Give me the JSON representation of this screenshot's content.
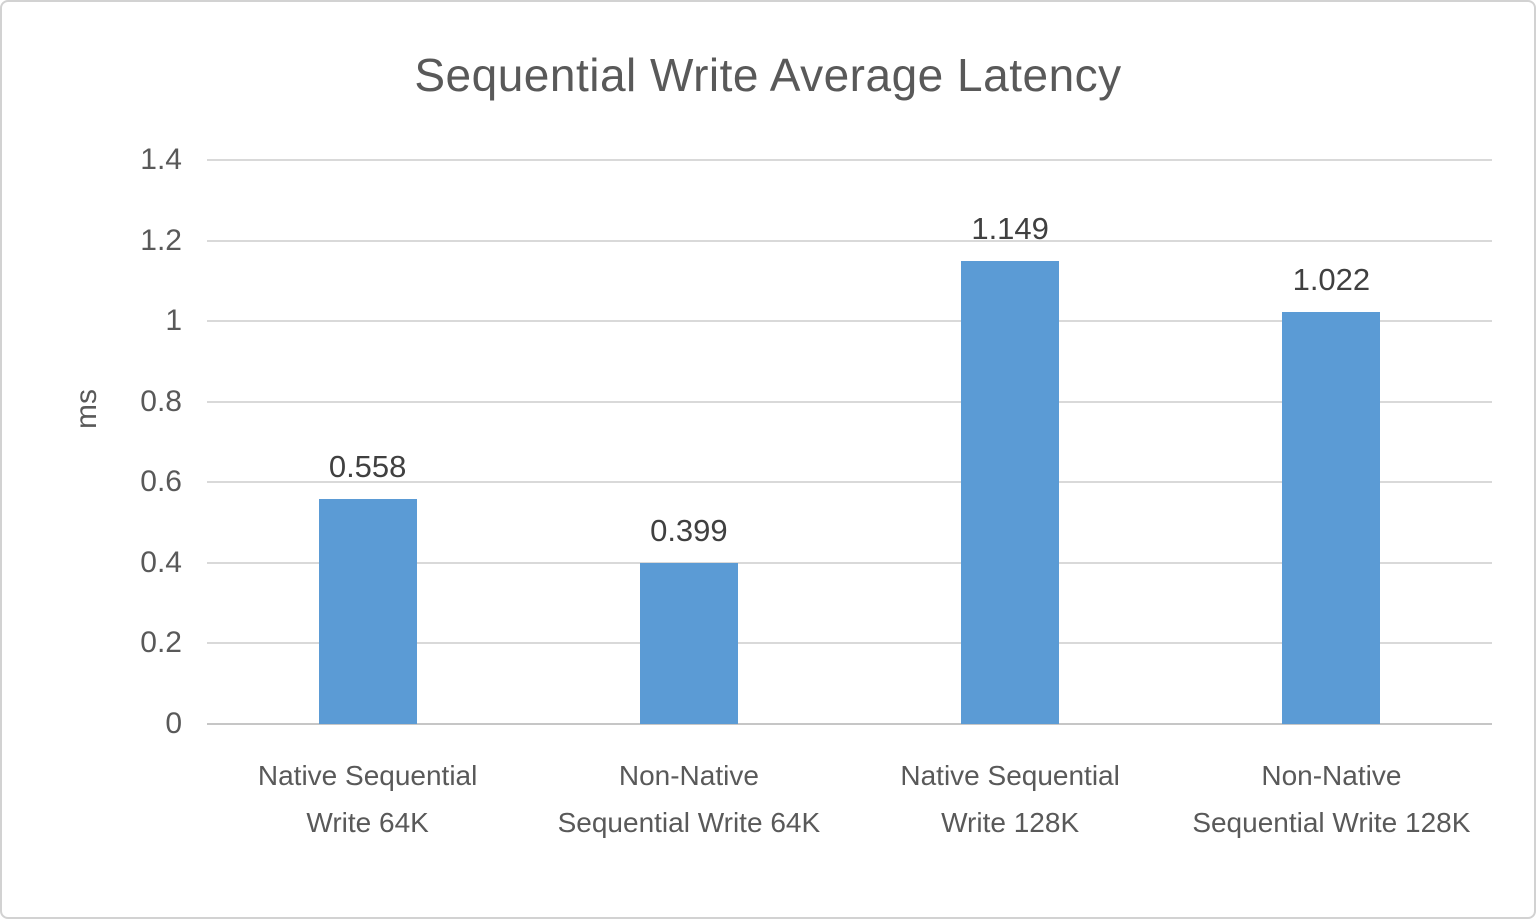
{
  "chart": {
    "title": "Sequential Write Average Latency",
    "y_axis": {
      "label": "ms",
      "tick_labels": [
        "0",
        "0.2",
        "0.4",
        "0.6",
        "0.8",
        "1",
        "1.2",
        "1.4"
      ]
    },
    "colors": {
      "bar": "#5B9BD5",
      "gridline": "#d9d9d9",
      "axis_line": "#c6c6c6",
      "title_text": "#595959",
      "tick_text": "#595959",
      "value_text": "#404040",
      "figure_border": "#d2d2d2"
    }
  },
  "chart_data": {
    "type": "bar",
    "title": "Sequential Write Average Latency",
    "xlabel": "",
    "ylabel": "ms",
    "categories": [
      "Native Sequential Write 64K",
      "Non-Native Sequential Write 64K",
      "Native Sequential Write 128K",
      "Non-Native Sequential Write 128K"
    ],
    "values": [
      0.558,
      0.399,
      1.149,
      1.022
    ],
    "value_labels": [
      "0.558",
      "0.399",
      "1.149",
      "1.022"
    ],
    "ylim": [
      0,
      1.4
    ],
    "ytick_step": 0.2,
    "grid": true,
    "legend_position": "none",
    "bar_color": "#5B9BD5"
  }
}
